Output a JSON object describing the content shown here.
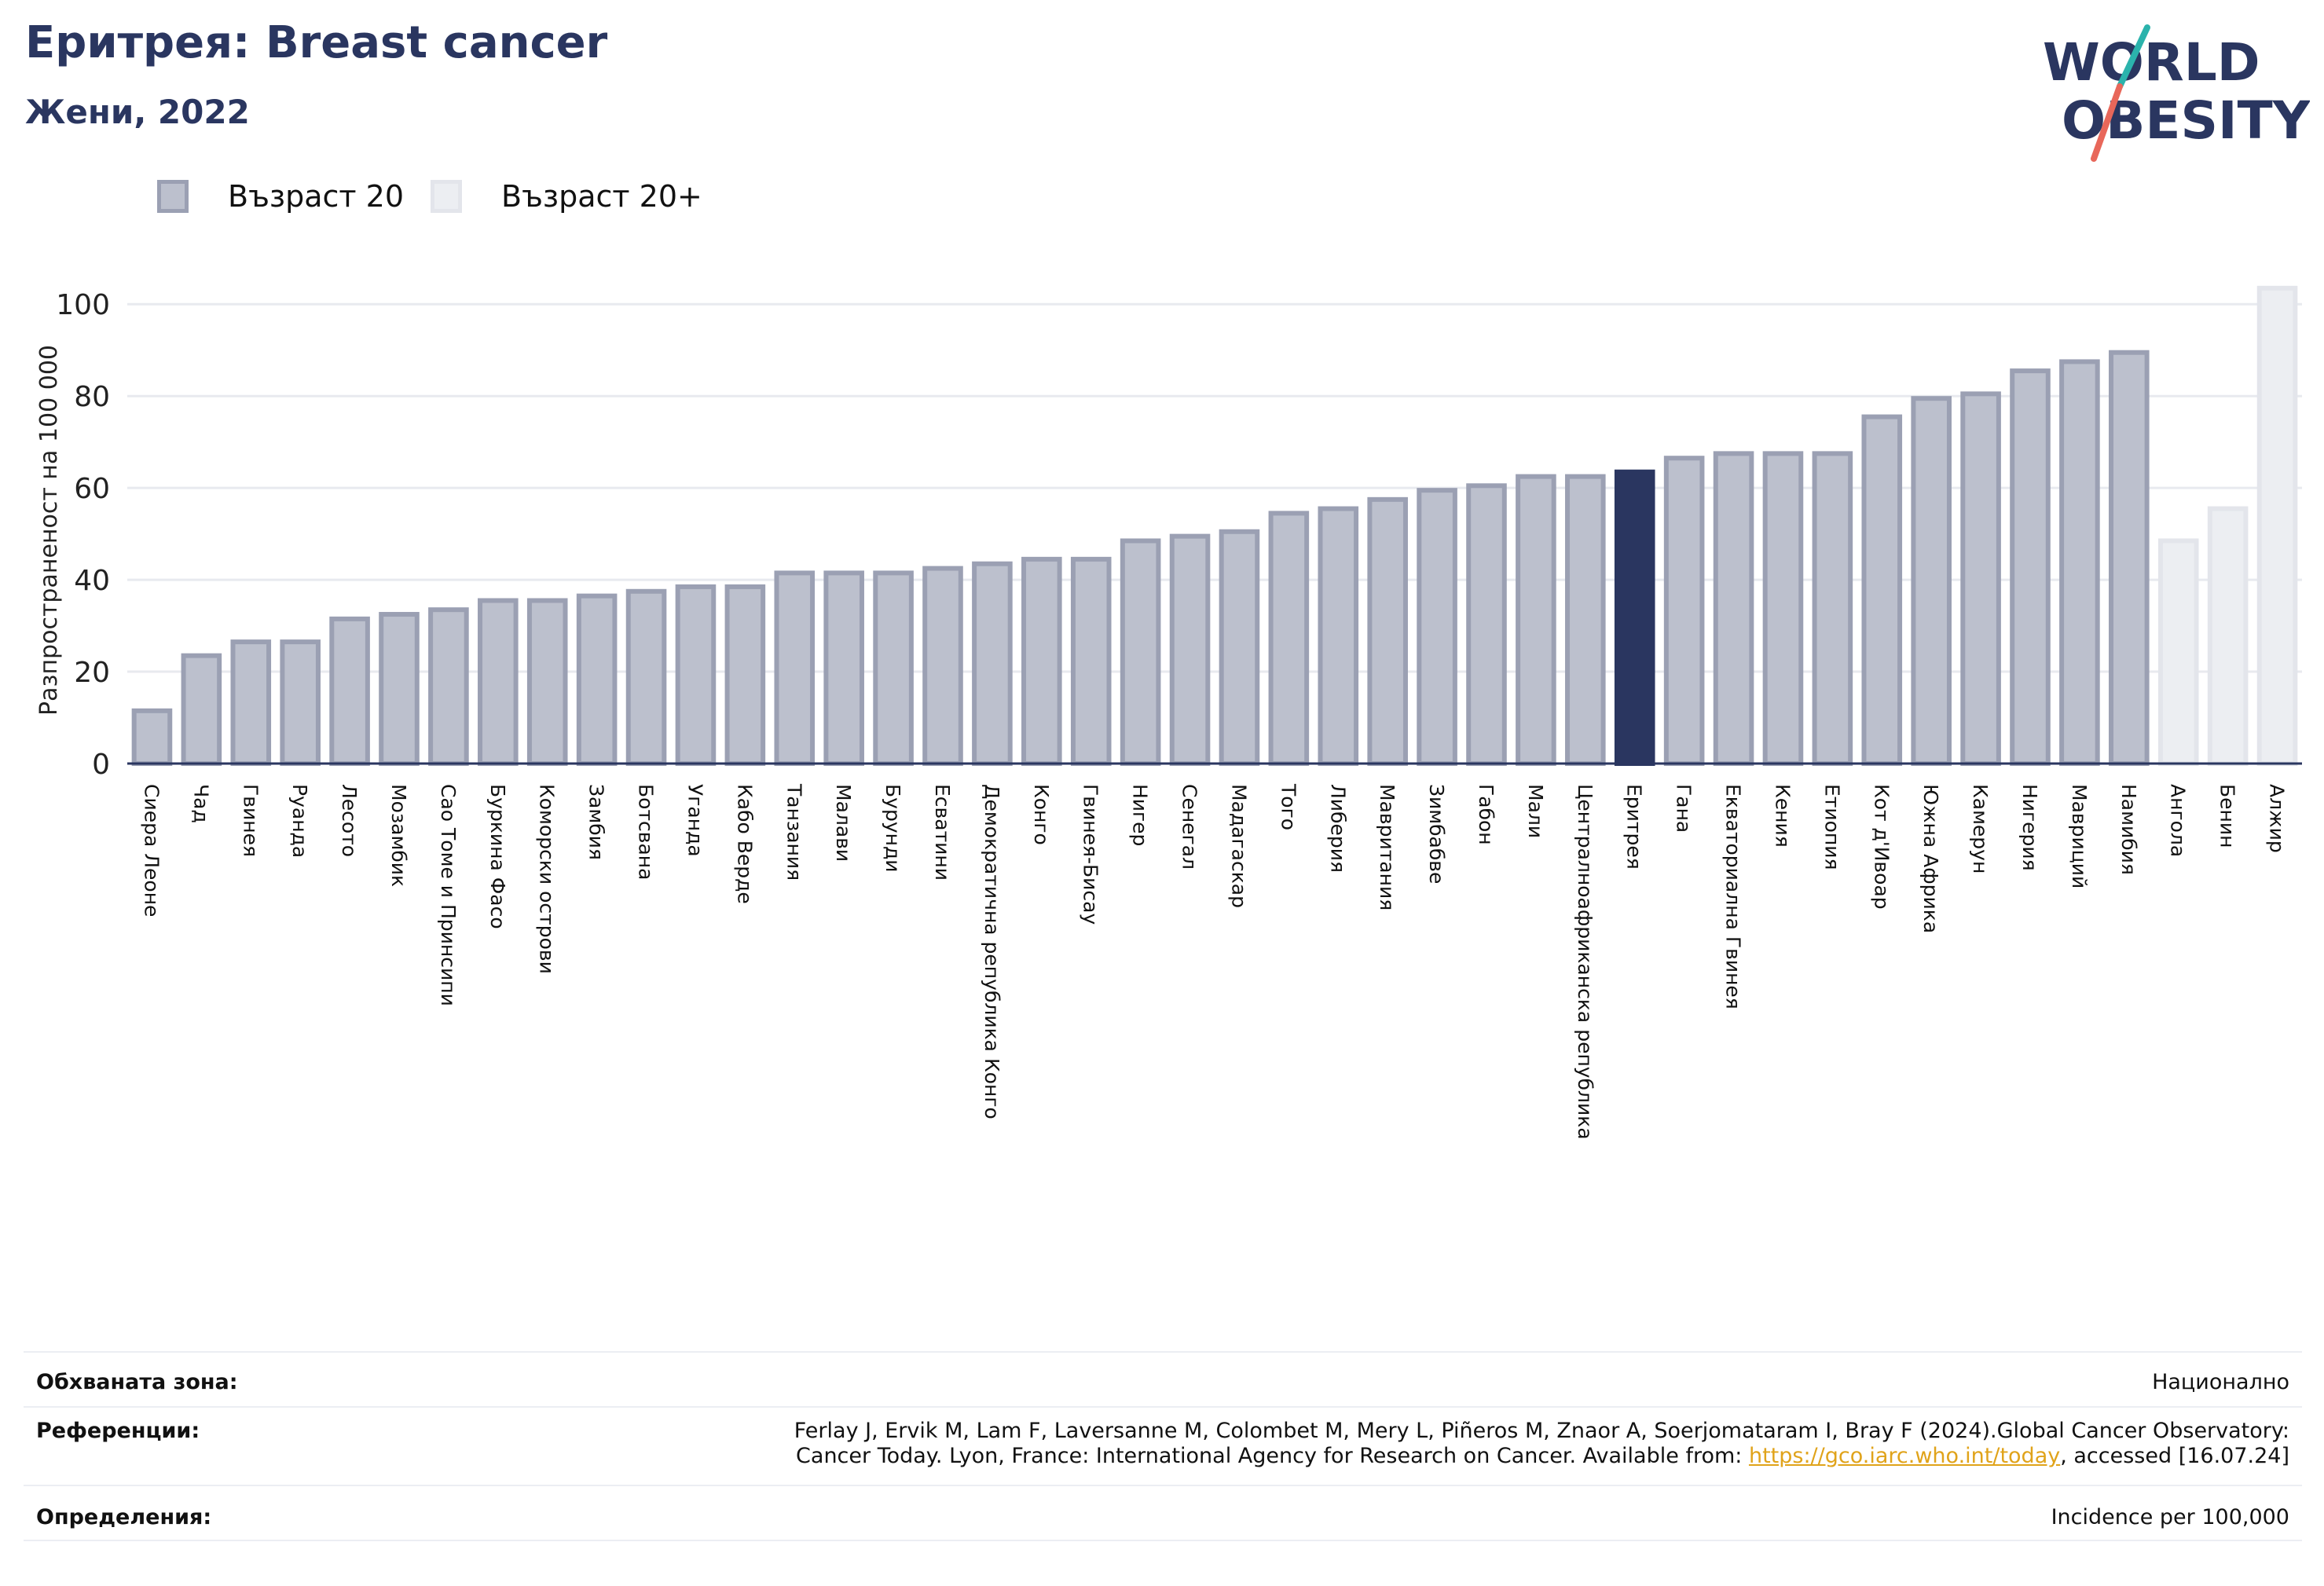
{
  "header": {
    "title": "Еритрея: Breast cancer",
    "subtitle": "Жени, 2022"
  },
  "logo": {
    "line1": "WORLD",
    "line2": "OBESITY"
  },
  "legend": [
    {
      "label": "Възраст 20",
      "color": "#bcc0cd"
    },
    {
      "label": "Възраст 20+",
      "color": "#eceef2"
    }
  ],
  "chart_data": {
    "type": "bar",
    "title": "",
    "xlabel": "",
    "ylabel": "Разпространеност  на 100 000",
    "ylim": [
      0,
      105
    ],
    "yticks": [
      0,
      20,
      40,
      60,
      80,
      100
    ],
    "grid": true,
    "highlight": "Еритрея",
    "categories": [
      "Сиера Леоне",
      "Чад",
      "Гвинея",
      "Руанда",
      "Лесото",
      "Мозамбик",
      "Сао Томе и Принсипи",
      "Буркина Фасо",
      "Коморски острови",
      "Замбия",
      "Ботсвана",
      "Уганда",
      "Кабо Верде",
      "Танзания",
      "Малави",
      "Бурунди",
      "Есватини",
      "Демократична републикa Конго",
      "Конго",
      "Гвинея-Бисау",
      "Нигер",
      "Сенегал",
      "Мадагаскар",
      "Того",
      "Либерия",
      "Мавритания",
      "Зимбабве",
      "Габон",
      "Мали",
      "Централноафриканска република",
      "Еритрея",
      "Гана",
      "Екваториална Гвинея",
      "Кения",
      "Етиопия",
      "Кот д'Ивоар",
      "Южна Африка",
      "Камерун",
      "Нигерия",
      "Мавриций",
      "Намибия",
      "Ангола",
      "Бенин",
      "Алжир"
    ],
    "series": [
      {
        "name": "Възраст 20",
        "values": [
          12,
          24,
          27,
          27,
          32,
          33,
          34,
          36,
          36,
          37,
          38,
          39,
          39,
          42,
          42,
          42,
          43,
          44,
          45,
          45,
          49,
          50,
          51,
          55,
          56,
          58,
          60,
          61,
          63,
          63,
          64,
          67,
          68,
          68,
          68,
          76,
          80,
          81,
          86,
          88,
          90,
          null,
          null,
          null
        ]
      },
      {
        "name": "Възраст 20+",
        "values": [
          null,
          null,
          null,
          null,
          null,
          null,
          null,
          null,
          null,
          null,
          null,
          null,
          null,
          null,
          null,
          null,
          null,
          null,
          null,
          null,
          null,
          null,
          null,
          null,
          null,
          null,
          null,
          null,
          null,
          null,
          null,
          null,
          null,
          null,
          null,
          null,
          null,
          null,
          null,
          null,
          null,
          49,
          56,
          104
        ]
      }
    ],
    "colors": {
      "base": "#bcc0cd",
      "base_edge": "#9ba0b3",
      "plus": "#eceef2",
      "plus_edge": "#e3e5eb",
      "highlight": "#2a3660"
    }
  },
  "info": {
    "coverage_label": "Обхваната зона:",
    "coverage_value": "Национално",
    "references_label": "Референции:",
    "references_line1": "Ferlay J, Ervik M, Lam F, Laversanne M, Colombet M, Mery L, Piñeros M, Znaor A, Soerjomataram I, Bray F (2024).Global Cancer Observatory:",
    "references_line2_pre": "Cancer Today. Lyon, France: International Agency for Research on Cancer. Available from: ",
    "references_link": "https://gco.iarc.who.int/today",
    "references_line2_post": ", accessed [16.07.24]",
    "definitions_label": "Определения:",
    "definitions_value": "Incidence per 100,000"
  }
}
